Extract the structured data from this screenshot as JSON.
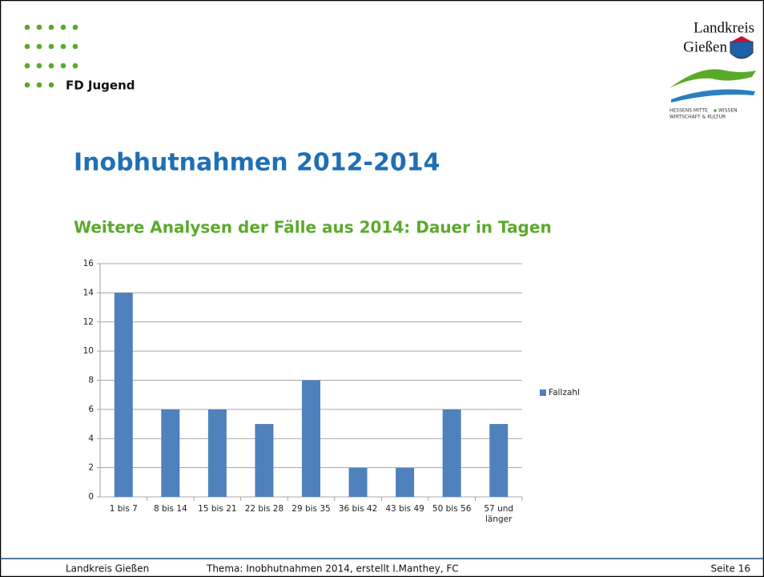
{
  "header": {
    "unit": "FD Jugend",
    "logo": {
      "line1": "Landkreis",
      "line2": "Gießen",
      "motto1": "HESSENS MITTE",
      "motto2": "WISSEN",
      "motto3": "WIRTSCHAFT & KULTUR"
    }
  },
  "title": "Inobhutnahmen 2012-2014",
  "subtitle": "Weitere Analysen der Fälle aus 2014: Dauer in Tagen",
  "chart_data": {
    "type": "bar",
    "categories": [
      "1 bis 7",
      "8 bis 14",
      "15 bis 21",
      "22 bis 28",
      "29 bis 35",
      "36 bis 42",
      "43 bis 49",
      "50 bis 56",
      "57 und länger"
    ],
    "series": [
      {
        "name": "Fallzahl",
        "color": "#4f81bd",
        "values": [
          14,
          6,
          6,
          5,
          8,
          2,
          2,
          6,
          5
        ]
      }
    ],
    "ylim": [
      0,
      16
    ],
    "yticks": [
      0,
      2,
      4,
      6,
      8,
      10,
      12,
      14,
      16
    ],
    "grid": true,
    "legend": "right"
  },
  "footer": {
    "left": "Landkreis Gießen",
    "center": "Thema:  Inobhutnahmen 2014, erstellt I.Manthey, FC",
    "right": "Seite 16"
  }
}
